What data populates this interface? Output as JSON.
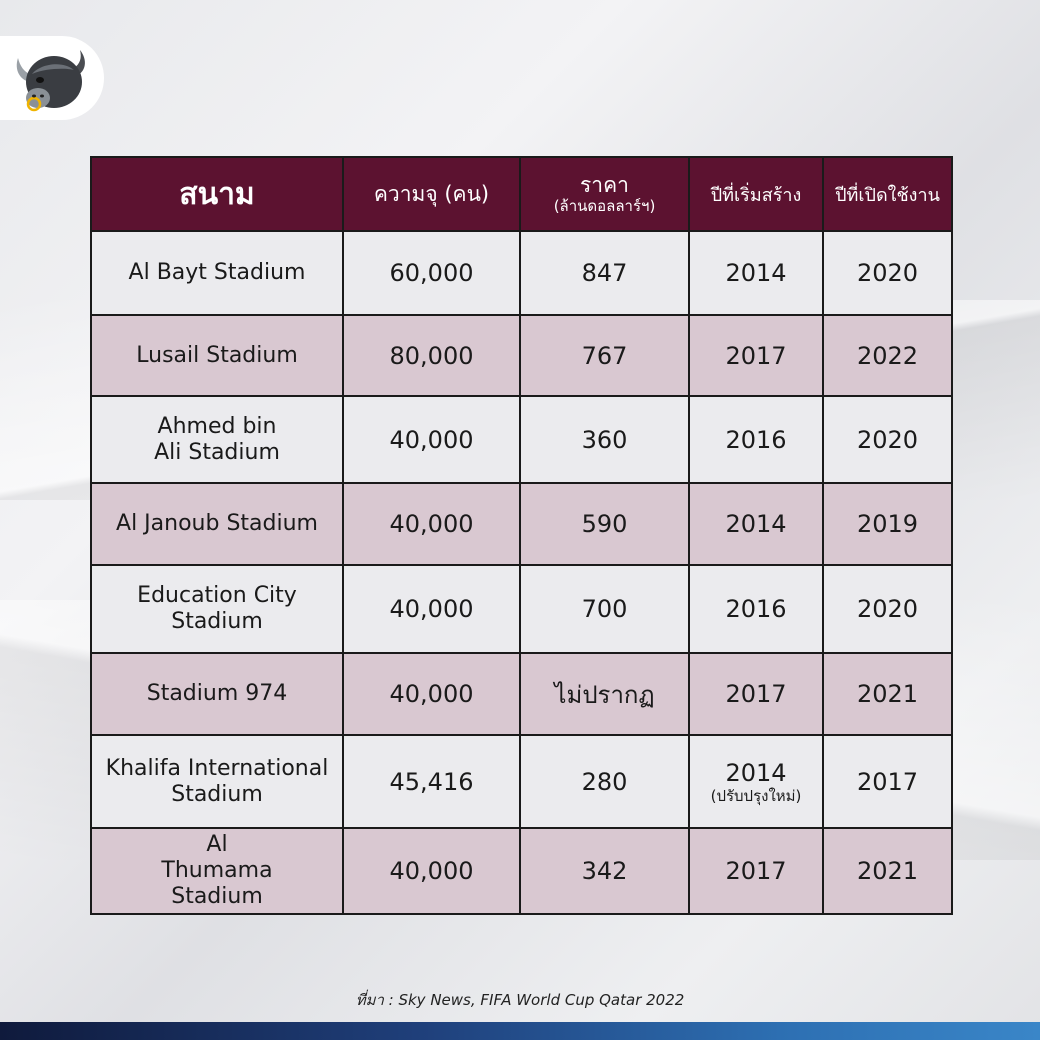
{
  "header": {
    "col_stadium": "สนาม",
    "col_capacity": "ความจุ (คน)",
    "col_price": "ราคา",
    "col_price_sub": "(ล้านดอลลาร์ฯ)",
    "col_start": "ปีที่เริ่มสร้าง",
    "col_open": "ปีที่เปิดใช้งาน"
  },
  "rows": [
    {
      "name": "Al Bayt Stadium",
      "capacity": "60,000",
      "price": "847",
      "start": "2014",
      "start_note": "",
      "open": "2020"
    },
    {
      "name": "Lusail Stadium",
      "capacity": "80,000",
      "price": "767",
      "start": "2017",
      "start_note": "",
      "open": "2022"
    },
    {
      "name": "Ahmed bin Ali Stadium",
      "capacity": "40,000",
      "price": "360",
      "start": "2016",
      "start_note": "",
      "open": "2020"
    },
    {
      "name": "Al Janoub Stadium",
      "capacity": "40,000",
      "price": "590",
      "start": "2014",
      "start_note": "",
      "open": "2019"
    },
    {
      "name": "Education City Stadium",
      "capacity": "40,000",
      "price": "700",
      "start": "2016",
      "start_note": "",
      "open": "2020"
    },
    {
      "name": "Stadium 974",
      "capacity": "40,000",
      "price": "ไม่ปรากฏ",
      "start": "2017",
      "start_note": "",
      "open": "2021"
    },
    {
      "name": "Khalifa International Stadium",
      "capacity": "45,416",
      "price": "280",
      "start": "2014",
      "start_note": "(ปรับปรุงใหม่)",
      "open": "2017"
    },
    {
      "name": "Al Thumama Stadium",
      "capacity": "40,000",
      "price": "342",
      "start": "2017",
      "start_note": "",
      "open": "2021"
    }
  ],
  "source": "ที่มา : Sky News, FIFA World Cup Qatar 2022",
  "colors": {
    "header_bg": "#5c1230",
    "row_light": "#ebebee",
    "row_pink": "#d9c8d1"
  },
  "logo": {
    "icon": "bull-head-icon"
  }
}
